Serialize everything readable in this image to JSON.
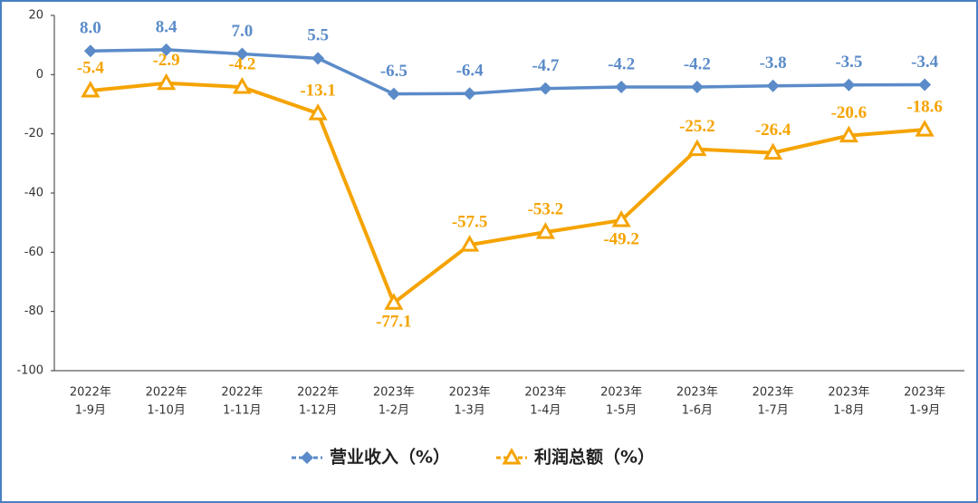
{
  "chart_data": {
    "type": "line",
    "categories": [
      [
        "2022年",
        "1-9月"
      ],
      [
        "2022年",
        "1-10月"
      ],
      [
        "2022年",
        "1-11月"
      ],
      [
        "2022年",
        "1-12月"
      ],
      [
        "2023年",
        "1-2月"
      ],
      [
        "2023年",
        "1-3月"
      ],
      [
        "2023年",
        "1-4月"
      ],
      [
        "2023年",
        "1-5月"
      ],
      [
        "2023年",
        "1-6月"
      ],
      [
        "2023年",
        "1-7月"
      ],
      [
        "2023年",
        "1-8月"
      ],
      [
        "2023年",
        "1-9月"
      ]
    ],
    "series": [
      {
        "name": "营业收入（%）",
        "color": "#5b8bc9",
        "marker": "diamond",
        "values": [
          8.0,
          8.4,
          7.0,
          5.5,
          -6.5,
          -6.4,
          -4.7,
          -4.2,
          -4.2,
          -3.8,
          -3.5,
          -3.4
        ],
        "value_labels": [
          "8.0",
          "8.4",
          "7.0",
          "5.5",
          "-6.5",
          "-6.4",
          "-4.7",
          "-4.2",
          "-4.2",
          "-3.8",
          "-3.5",
          "-3.4"
        ]
      },
      {
        "name": "利润总额（%）",
        "color": "#f5a300",
        "marker": "triangle",
        "values": [
          -5.4,
          -2.9,
          -4.2,
          -13.1,
          -77.1,
          -57.5,
          -53.2,
          -49.2,
          -25.2,
          -26.4,
          -20.6,
          -18.6
        ],
        "value_labels": [
          "-5.4",
          "-2.9",
          "-4.2",
          "-13.1",
          "-77.1",
          "-57.5",
          "-53.2",
          "-49.2",
          "-25.2",
          "-26.4",
          "-20.6",
          "-18.6"
        ]
      }
    ],
    "ylim": [
      -100,
      20
    ],
    "yticks": [
      20,
      0,
      -20,
      -40,
      -60,
      -80,
      -100
    ],
    "grid": false,
    "legend": "bottom"
  }
}
